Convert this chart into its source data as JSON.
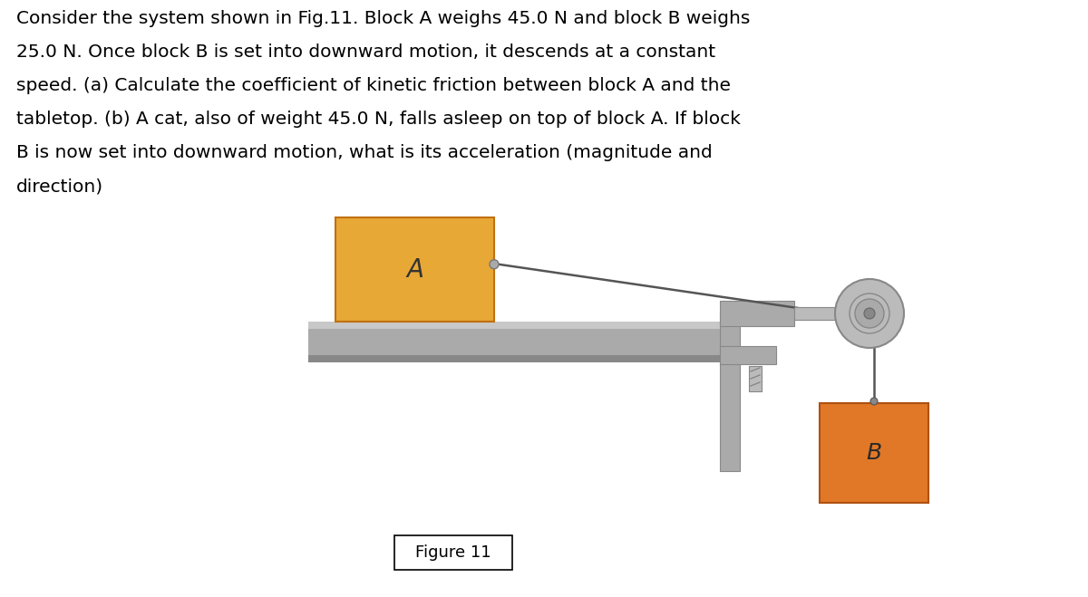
{
  "bg_color": "#ffffff",
  "text_color": "#000000",
  "block_A_color": "#E8A835",
  "block_B_color": "#E07828",
  "table_color_light": "#C8C8C8",
  "table_color_mid": "#AAAAAA",
  "table_color_dark": "#888888",
  "clamp_color": "#AAAAAA",
  "clamp_dark": "#888888",
  "pulley_outer_color": "#BBBBBB",
  "pulley_mid_color": "#AAAAAA",
  "rope_color": "#555555",
  "label_A": "A",
  "label_B": "B",
  "figure_label": "Figure 11",
  "para_line1": "Consider the system shown in Fig.11. Block A weighs 45.0 N and block B weighs",
  "para_line2": "25.0 N. Once block B is set into downward motion, it descends at a constant",
  "para_line3": "speed. (a) Calculate the coefficient of kinetic friction between block A and the",
  "para_line4": "tabletop. (b) A cat, also of weight 45.0 N, falls asleep on top of block A. If block",
  "para_line5": "B is now set into downward motion, what is its acceleration (magnitude and",
  "para_line6": "direction)"
}
